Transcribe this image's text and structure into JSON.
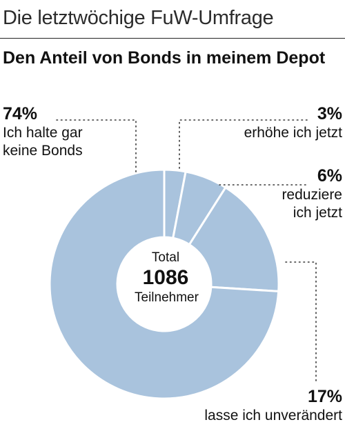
{
  "header": {
    "title": "Die letztwöchige FuW-Umfrage"
  },
  "chart_data": {
    "type": "pie",
    "variant": "donut",
    "title": "Den Anteil von Bonds in meinem Depot",
    "center_text": {
      "line1": "Total",
      "value": "1086",
      "line2": "Teilnehmer"
    },
    "categories": [
      "erhöhe ich jetzt",
      "reduziere ich jetzt",
      "lasse ich unverändert",
      "Ich halte gar keine Bonds"
    ],
    "values": [
      3,
      6,
      17,
      74
    ],
    "labels": [
      "3%",
      "6%",
      "17%",
      "74%"
    ],
    "color": "#a9c3dd"
  },
  "labels": {
    "no_bonds": {
      "pct": "74%",
      "line1": "Ich halte gar",
      "line2": "keine Bonds"
    },
    "increase": {
      "pct": "3%",
      "line1": "erhöhe ich jetzt"
    },
    "reduce": {
      "pct": "6%",
      "line1": "reduziere",
      "line2": "ich jetzt"
    },
    "unchanged": {
      "pct": "17%",
      "line1": "lasse ich unverändert"
    }
  }
}
